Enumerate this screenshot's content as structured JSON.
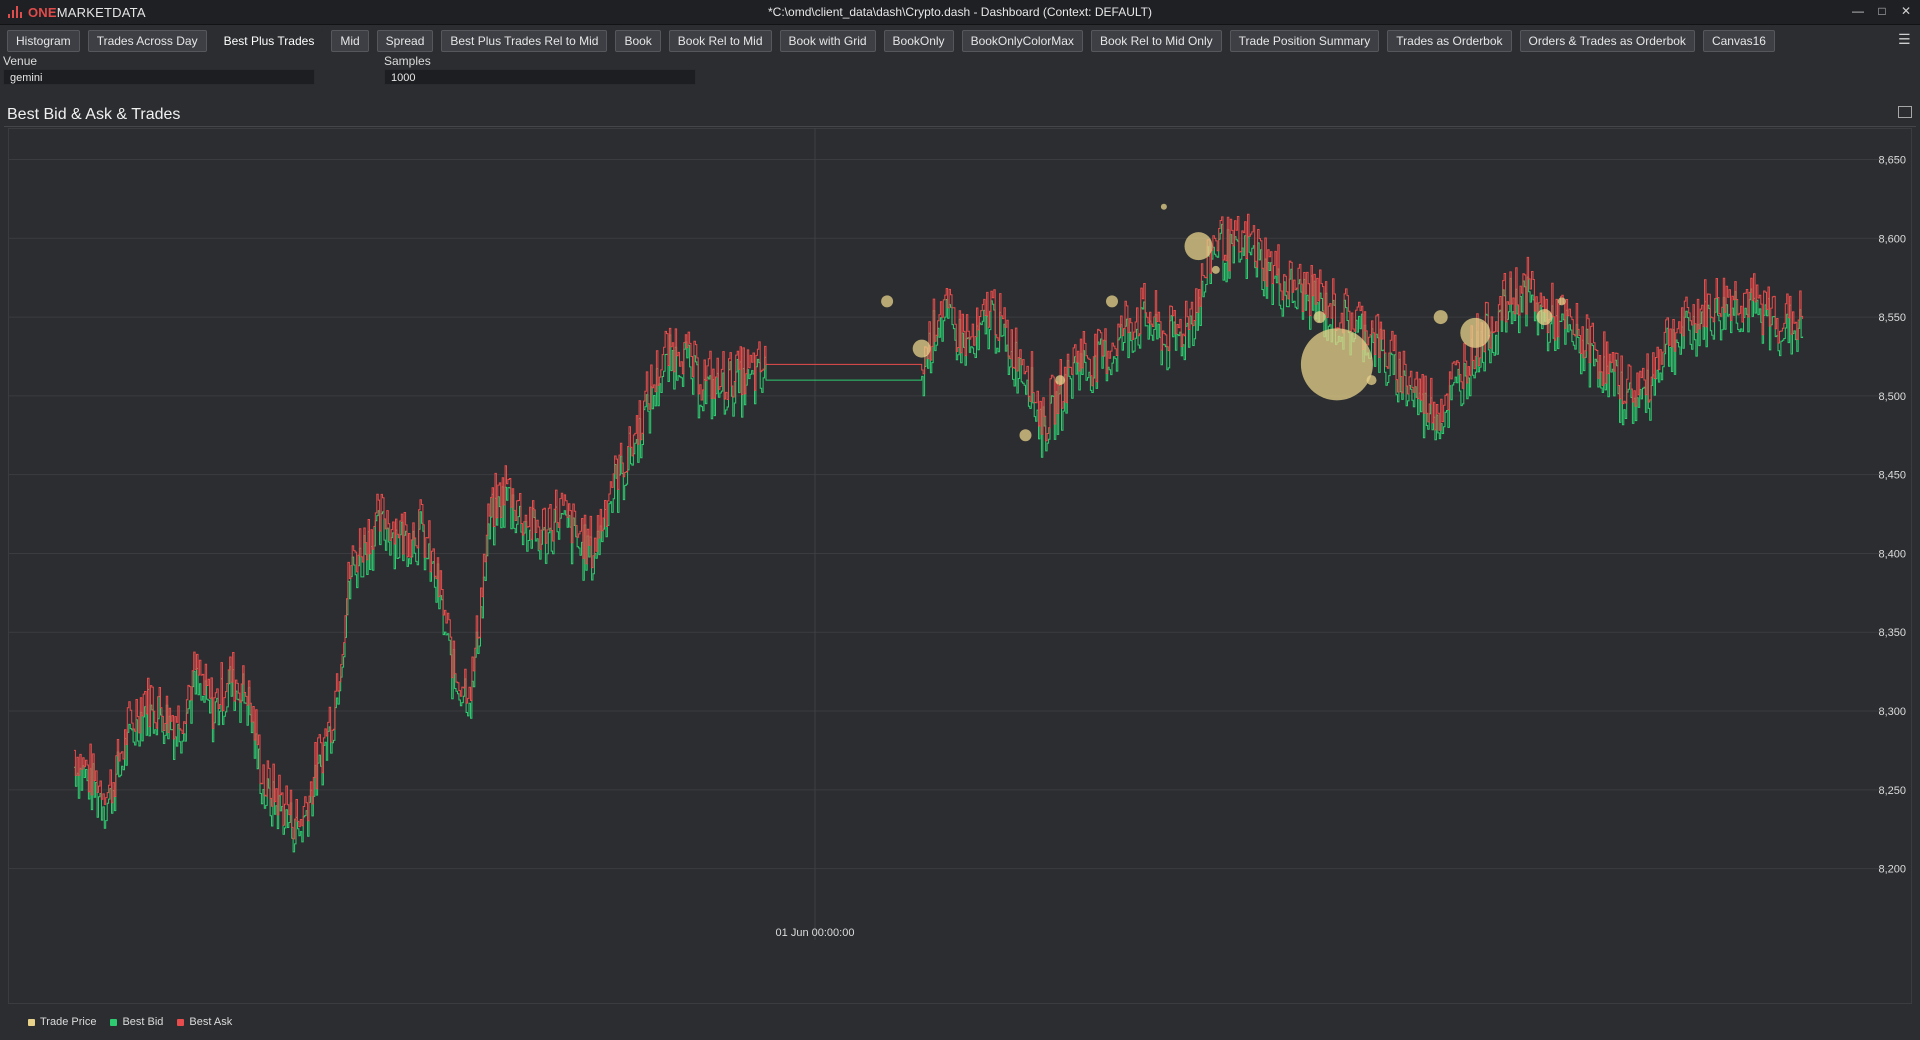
{
  "app": {
    "logo_one": "ONE",
    "logo_rest": "MARKETDATA",
    "window_title": "*C:\\omd\\client_data\\dash\\Crypto.dash - Dashboard (Context: DEFAULT)"
  },
  "tabs": [
    {
      "label": "Histogram"
    },
    {
      "label": "Trades Across Day"
    },
    {
      "label": "Best Plus Trades"
    },
    {
      "label": "Mid"
    },
    {
      "label": "Spread"
    },
    {
      "label": "Best Plus Trades Rel to Mid"
    },
    {
      "label": "Book"
    },
    {
      "label": "Book Rel to Mid"
    },
    {
      "label": "Book with Grid"
    },
    {
      "label": "BookOnly"
    },
    {
      "label": "BookOnlyColorMax"
    },
    {
      "label": "Book Rel to Mid Only"
    },
    {
      "label": "Trade Position Summary"
    },
    {
      "label": "Trades as Orderbok"
    },
    {
      "label": "Orders & Trades as Orderbok"
    },
    {
      "label": "Canvas16"
    }
  ],
  "active_tab": "Best Plus Trades",
  "params": {
    "venue_label": "Venue",
    "venue_value": "gemini",
    "samples_label": "Samples",
    "samples_value": "1000"
  },
  "panel": {
    "title": "Best Bid & Ask & Trades"
  },
  "colors": {
    "bid": "#2ecc71",
    "ask": "#e84c4c",
    "trade": "#e8d28a",
    "grid": "#3a3c40",
    "axis_text": "#dcdcdc"
  },
  "chart_data": {
    "type": "line",
    "title": "Best Bid & Ask & Trades",
    "ylim": [
      8175,
      8670
    ],
    "y_ticks": [
      "8,200",
      "8,250",
      "8,300",
      "8,350",
      "8,400",
      "8,450",
      "8,500",
      "8,550",
      "8,600",
      "8,650"
    ],
    "x_tick_label": "01 Jun 00:00:00",
    "grid": true,
    "legend_position": "bottom-left",
    "series": [
      {
        "name": "Trade Price",
        "color": "#e8d28a"
      },
      {
        "name": "Best Bid",
        "color": "#2ecc71"
      },
      {
        "name": "Best Ask",
        "color": "#e84c4c"
      }
    ],
    "bid_ask_mid": {
      "t": [
        0.0,
        0.01,
        0.02,
        0.03,
        0.04,
        0.05,
        0.06,
        0.07,
        0.08,
        0.09,
        0.1,
        0.11,
        0.12,
        0.13,
        0.14,
        0.15,
        0.16,
        0.17,
        0.18,
        0.19,
        0.2,
        0.21,
        0.22,
        0.23,
        0.24,
        0.25,
        0.26,
        0.27,
        0.28,
        0.29,
        0.3,
        0.31,
        0.32,
        0.33,
        0.34,
        0.35,
        0.36,
        0.37,
        0.38,
        0.39,
        0.4,
        0.41,
        0.42,
        0.43,
        0.44,
        0.45,
        0.46,
        0.47,
        0.48,
        0.49,
        0.5,
        0.51,
        0.52,
        0.53,
        0.54,
        0.55,
        0.56,
        0.57,
        0.58,
        0.59,
        0.6,
        0.61,
        0.62,
        0.63,
        0.64,
        0.65,
        0.66,
        0.67,
        0.68,
        0.69,
        0.7,
        0.71,
        0.72,
        0.73,
        0.74,
        0.75,
        0.76,
        0.77,
        0.78,
        0.79,
        0.8,
        0.81,
        0.82,
        0.83,
        0.84,
        0.85,
        0.86,
        0.87,
        0.88,
        0.89,
        0.9,
        0.91,
        0.92,
        0.93,
        0.94,
        0.95,
        0.96,
        0.97,
        0.98,
        0.99,
        1.0
      ],
      "mid": [
        8270,
        8255,
        8245,
        8280,
        8305,
        8300,
        8290,
        8320,
        8300,
        8320,
        8310,
        8250,
        8240,
        8225,
        8260,
        8300,
        8390,
        8410,
        8420,
        8410,
        8415,
        8380,
        8320,
        8315,
        8420,
        8440,
        8420,
        8410,
        8425,
        8410,
        8400,
        8440,
        8460,
        8490,
        8520,
        8530,
        8510,
        8505,
        8510,
        8510,
        8515,
        8515,
        8515,
        8515,
        8515,
        8515,
        8515,
        8515,
        8515,
        8515,
        8555,
        8540,
        8530,
        8555,
        8530,
        8520,
        8480,
        8500,
        8525,
        8520,
        8530,
        8545,
        8550,
        8535,
        8540,
        8560,
        8600,
        8590,
        8595,
        8580,
        8570,
        8565,
        8560,
        8550,
        8545,
        8540,
        8520,
        8510,
        8495,
        8490,
        8510,
        8530,
        8545,
        8560,
        8565,
        8550,
        8545,
        8535,
        8525,
        8510,
        8500,
        8505,
        8535,
        8540,
        8550,
        8555,
        8560,
        8555,
        8550,
        8545,
        8545
      ]
    },
    "trades": [
      {
        "t": 0.47,
        "price": 8560,
        "size": 6
      },
      {
        "t": 0.49,
        "price": 8530,
        "size": 9
      },
      {
        "t": 0.55,
        "price": 8475,
        "size": 6
      },
      {
        "t": 0.57,
        "price": 8510,
        "size": 5
      },
      {
        "t": 0.6,
        "price": 8560,
        "size": 6
      },
      {
        "t": 0.63,
        "price": 8620,
        "size": 3
      },
      {
        "t": 0.65,
        "price": 8595,
        "size": 14
      },
      {
        "t": 0.66,
        "price": 8580,
        "size": 4
      },
      {
        "t": 0.72,
        "price": 8550,
        "size": 6
      },
      {
        "t": 0.73,
        "price": 8520,
        "size": 36
      },
      {
        "t": 0.75,
        "price": 8510,
        "size": 5
      },
      {
        "t": 0.79,
        "price": 8550,
        "size": 7
      },
      {
        "t": 0.81,
        "price": 8540,
        "size": 15
      },
      {
        "t": 0.85,
        "price": 8550,
        "size": 8
      },
      {
        "t": 0.86,
        "price": 8560,
        "size": 4
      }
    ]
  },
  "legend": {
    "trade_label": "Trade Price",
    "bid_label": "Best Bid",
    "ask_label": "Best Ask"
  }
}
